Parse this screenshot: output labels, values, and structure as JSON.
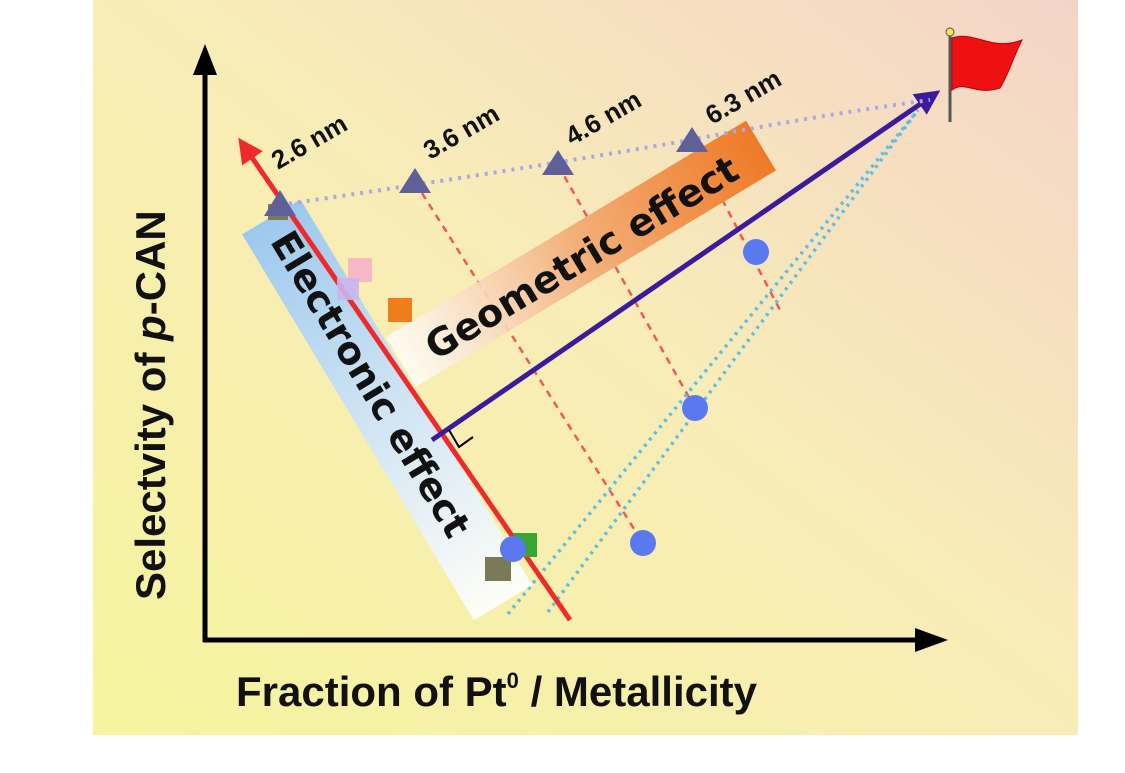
{
  "axes": {
    "x_label_main": "Fraction of Pt",
    "x_label_sup": "0",
    "x_label_rest": " / Metallicity",
    "y_label_main": "Selectvity of ",
    "y_label_italic": "p",
    "y_label_rest": "-CAN"
  },
  "size_labels": [
    "2.6 nm",
    "3.6 nm",
    "4.6 nm",
    "6.3 nm"
  ],
  "effects": {
    "electronic": "Electronic effect",
    "geometric": "Geometric effect"
  },
  "colors": {
    "background_start": "#f6f3a6",
    "background_end": "#f6d9c9",
    "electronic_arrow": "#ee2a2a",
    "geometric_arrow": "#3b1b9c",
    "triangle": "#5f5f9a",
    "circle": "#5a78ef",
    "flag": "#ee1111",
    "dashed_red": "#ee5a5a",
    "dotted_blue": "#5ec0e6",
    "dotted_lavender": "#a9a9e6",
    "electronic_box": "#b7d8f2",
    "geometric_box": "#ee8430"
  },
  "icons": {
    "flag": "red-flag-icon",
    "right_angle": "right-angle-marker"
  }
}
